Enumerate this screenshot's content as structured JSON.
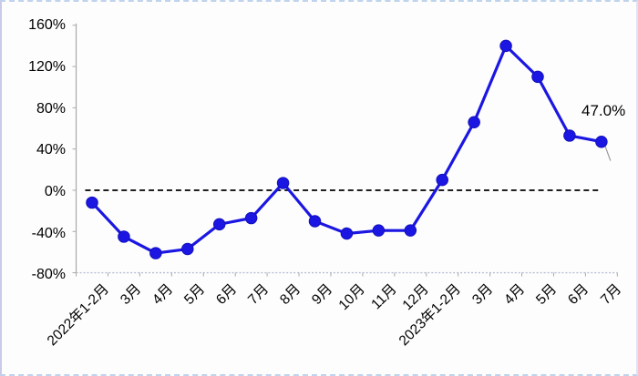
{
  "chart_data": {
    "type": "line",
    "title": "",
    "xlabel": "",
    "ylabel": "",
    "categories": [
      "2022年1-2月",
      "3月",
      "4月",
      "5月",
      "6月",
      "7月",
      "8月",
      "9月",
      "10月",
      "11月",
      "12月",
      "2023年1-2月",
      "3月",
      "4月",
      "5月",
      "6月",
      "7月"
    ],
    "values": [
      -12,
      -45,
      -61,
      -57,
      -33,
      -27,
      7,
      -30,
      -42,
      -39,
      -39,
      10,
      66,
      140,
      110,
      53,
      47.0
    ],
    "unit": "%",
    "ylim": [
      -80,
      160
    ],
    "yticks": [
      {
        "value": 160,
        "label": "160%"
      },
      {
        "value": 120,
        "label": "120%"
      },
      {
        "value": 80,
        "label": "80%"
      },
      {
        "value": 40,
        "label": "40%"
      },
      {
        "value": 0,
        "label": "0%"
      },
      {
        "value": -40,
        "label": "-40%"
      },
      {
        "value": -80,
        "label": "-80%"
      }
    ],
    "grid": "off",
    "legend": "none",
    "zero_line": {
      "style": "dashed",
      "color": "#000000"
    },
    "line_color": "#1b16e2",
    "marker_color": "#1b16e2",
    "marker_edge_color": "#1210bc",
    "annotation": {
      "text": "47.0%",
      "point_index": 16
    }
  }
}
